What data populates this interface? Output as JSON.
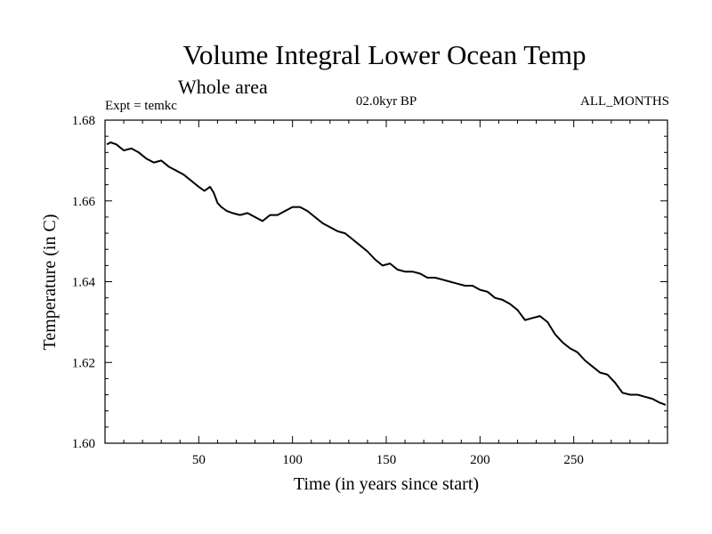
{
  "chart_data": {
    "type": "line",
    "title": "Volume Integral Lower Ocean Temp",
    "subtitle": "Whole area",
    "annotations": {
      "left": "Expt = temkc",
      "center": "02.0kyr BP",
      "right": "ALL_MONTHS"
    },
    "xlabel": "Time (in years since start)",
    "ylabel": "Temperature (in C)",
    "xlim": [
      0,
      300
    ],
    "ylim": [
      1.6,
      1.68
    ],
    "xticks": [
      50,
      100,
      150,
      200,
      250
    ],
    "xtick_labels": [
      "50",
      "100",
      "150",
      "200",
      "250"
    ],
    "yticks": [
      1.6,
      1.62,
      1.64,
      1.66,
      1.68
    ],
    "ytick_labels": [
      "1.60",
      "1.62",
      "1.64",
      "1.66",
      "1.68"
    ],
    "grid": false,
    "series": [
      {
        "name": "Temperature",
        "color": "#000000",
        "x": [
          1,
          3,
          6,
          10,
          14,
          18,
          22,
          26,
          30,
          34,
          38,
          42,
          46,
          50,
          53,
          56,
          58,
          60,
          62,
          65,
          68,
          72,
          76,
          80,
          84,
          88,
          92,
          96,
          100,
          104,
          108,
          112,
          116,
          120,
          124,
          128,
          132,
          136,
          140,
          144,
          148,
          152,
          156,
          160,
          164,
          168,
          172,
          176,
          180,
          184,
          188,
          192,
          196,
          200,
          204,
          208,
          212,
          216,
          220,
          224,
          228,
          232,
          236,
          240,
          244,
          248,
          252,
          256,
          260,
          264,
          268,
          272,
          276,
          280,
          284,
          288,
          292,
          296,
          299
        ],
        "y": [
          1.674,
          1.6745,
          1.674,
          1.6725,
          1.673,
          1.672,
          1.6705,
          1.6695,
          1.67,
          1.6685,
          1.6675,
          1.6665,
          1.665,
          1.6635,
          1.6625,
          1.6635,
          1.662,
          1.6595,
          1.6585,
          1.6575,
          1.657,
          1.6565,
          1.657,
          1.656,
          1.655,
          1.6565,
          1.6565,
          1.6575,
          1.6585,
          1.6585,
          1.6575,
          1.656,
          1.6545,
          1.6535,
          1.6525,
          1.652,
          1.6505,
          1.649,
          1.6475,
          1.6455,
          1.644,
          1.6445,
          1.643,
          1.6425,
          1.6425,
          1.642,
          1.641,
          1.641,
          1.6405,
          1.64,
          1.6395,
          1.639,
          1.639,
          1.638,
          1.6375,
          1.636,
          1.6355,
          1.6345,
          1.633,
          1.6305,
          1.631,
          1.6315,
          1.63,
          1.627,
          1.625,
          1.6235,
          1.6225,
          1.6205,
          1.619,
          1.6175,
          1.617,
          1.615,
          1.6125,
          1.612,
          1.612,
          1.6115,
          1.611,
          1.61,
          1.6095
        ]
      }
    ]
  }
}
